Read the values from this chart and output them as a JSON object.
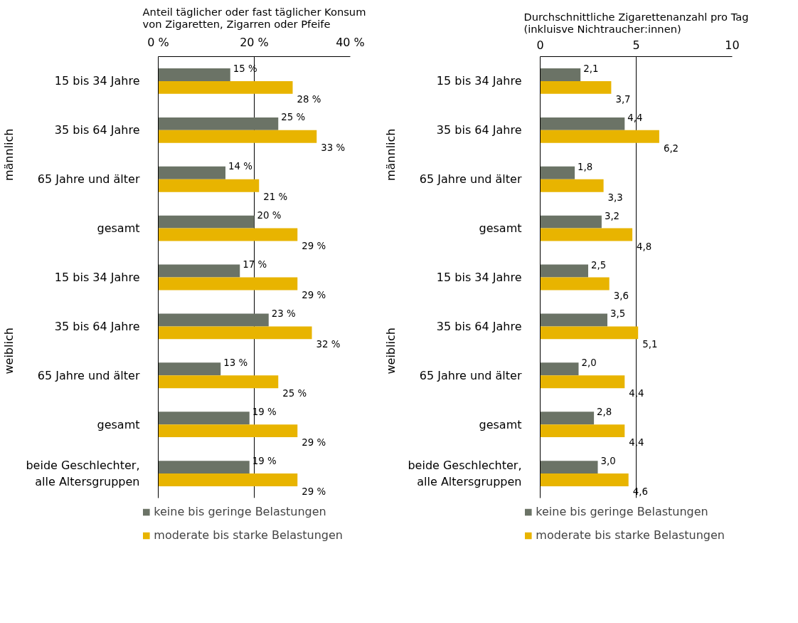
{
  "chart_data": [
    {
      "type": "bar",
      "orientation": "horizontal",
      "title": "Anteil täglicher oder fast täglicher Konsum\nvon Zigaretten, Zigarren oder Pfeife",
      "categories": [
        "15 bis 34 Jahre",
        "35 bis 64 Jahre",
        "65 Jahre und älter",
        "gesamt",
        "15 bis 34 Jahre",
        "35 bis 64 Jahre",
        "65 Jahre und älter",
        "gesamt",
        "beide Geschlechter,\nalle Altersgruppen"
      ],
      "annotations": [
        "männlich",
        "weiblich"
      ],
      "xlim": [
        0,
        40
      ],
      "xticks": [
        {
          "value": 0,
          "label": "0 %"
        },
        {
          "value": 20,
          "label": "20 %"
        },
        {
          "value": 40,
          "label": "40 %"
        }
      ],
      "grid": "x",
      "legend": "bottom",
      "series": [
        {
          "name": "keine bis geringe Belastungen",
          "color": "#6b7366",
          "values": [
            15,
            25,
            14,
            20,
            17,
            23,
            13,
            19,
            19
          ],
          "value_labels": [
            "15 %",
            "25 %",
            "14 %",
            "20 %",
            "17 %",
            "23 %",
            "13 %",
            "19 %",
            "19 %"
          ]
        },
        {
          "name": "moderate bis starke Belastungen",
          "color": "#e8b400",
          "values": [
            28,
            33,
            21,
            29,
            29,
            32,
            25,
            29,
            29
          ],
          "value_labels": [
            "28 %",
            "33 %",
            "21 %",
            "29 %",
            "29 %",
            "32 %",
            "25 %",
            "29 %",
            "29 %"
          ]
        }
      ]
    },
    {
      "type": "bar",
      "orientation": "horizontal",
      "title": "Durchschnittliche Zigarettenanzahl pro Tag\n(inkluisve Nichtraucher:innen)",
      "categories": [
        "15 bis 34 Jahre",
        "35 bis 64 Jahre",
        "65 Jahre und älter",
        "gesamt",
        "15 bis 34 Jahre",
        "35 bis 64 Jahre",
        "65 Jahre und älter",
        "gesamt",
        "beide Geschlechter,\nalle Altersgruppen"
      ],
      "annotations": [
        "männlich",
        "weiblich"
      ],
      "xlim": [
        0,
        10
      ],
      "xticks": [
        0,
        5,
        10
      ],
      "grid": "x",
      "legend": "bottom",
      "series": [
        {
          "name": "keine bis geringe Belastungen",
          "color": "#6b7366",
          "values": [
            2.1,
            4.4,
            1.8,
            3.2,
            2.5,
            3.5,
            2.0,
            2.8,
            3.0
          ],
          "value_labels": [
            "2,1",
            "4,4",
            "1,8",
            "3,2",
            "2,5",
            "3,5",
            "2,0",
            "2,8",
            "3,0"
          ]
        },
        {
          "name": "moderate bis starke Belastungen",
          "color": "#e8b400",
          "values": [
            3.7,
            6.2,
            3.3,
            4.8,
            3.6,
            5.1,
            4.4,
            4.4,
            4.6
          ],
          "value_labels": [
            "3,7",
            "6,2",
            "3,3",
            "4,8",
            "3,6",
            "5,1",
            "4,4",
            "4,4",
            "4,6"
          ]
        }
      ]
    }
  ]
}
